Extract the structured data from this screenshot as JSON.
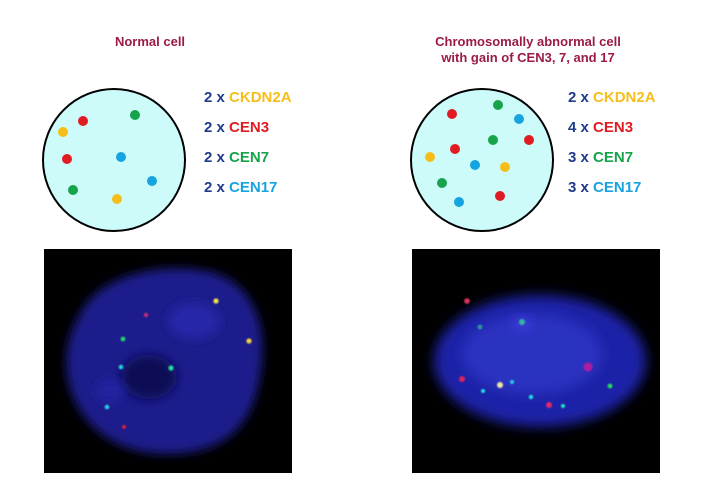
{
  "colors": {
    "title": "#9b1b45",
    "multiplier": "#1f3b8a",
    "CKDN2A": "#f5be1a",
    "CEN3": "#e11b22",
    "CEN7": "#16a34a",
    "CEN17": "#16a4e0",
    "cell_fill": "#ccfbfa"
  },
  "panels": [
    {
      "title_lines": [
        "Normal cell"
      ],
      "counts": [
        {
          "mult": "2 x",
          "probe": "CKDN2A",
          "color": "#f5be1a"
        },
        {
          "mult": "2 x",
          "probe": "CEN3",
          "color": "#e11b22"
        },
        {
          "mult": "2 x",
          "probe": "CEN7",
          "color": "#16a34a"
        },
        {
          "mult": "2 x",
          "probe": "CEN17",
          "color": "#16a4e0"
        }
      ]
    },
    {
      "title_lines": [
        "Chromosomally abnormal cell",
        "with gain of CEN3, 7, and 17"
      ],
      "counts": [
        {
          "mult": "2 x",
          "probe": "CKDN2A",
          "color": "#f5be1a"
        },
        {
          "mult": "4 x",
          "probe": "CEN3",
          "color": "#e11b22"
        },
        {
          "mult": "3 x",
          "probe": "CEN7",
          "color": "#16a34a"
        },
        {
          "mult": "3 x",
          "probe": "CEN17",
          "color": "#16a4e0"
        }
      ]
    }
  ]
}
